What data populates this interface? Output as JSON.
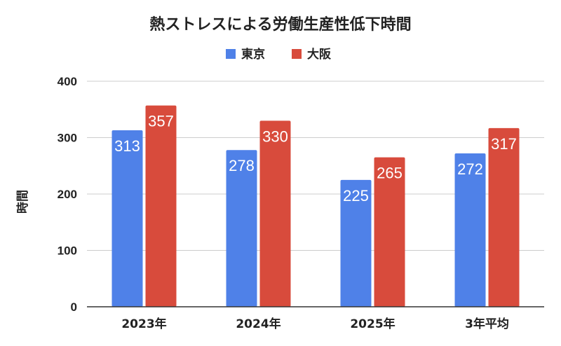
{
  "chart_data": {
    "type": "bar",
    "title": "熱ストレスによる労働生産性低下時間",
    "ylabel": "時間",
    "xlabel": "",
    "categories": [
      "2023年",
      "2024年",
      "2025年",
      "3年平均"
    ],
    "series": [
      {
        "name": "東京",
        "color": "#4f81e8",
        "values": [
          313,
          278,
          225,
          272
        ]
      },
      {
        "name": "大阪",
        "color": "#d84b3c",
        "values": [
          357,
          330,
          265,
          317
        ]
      }
    ],
    "ylim": [
      0,
      400
    ],
    "yticks": [
      "0",
      "100",
      "200",
      "300",
      "400"
    ],
    "yticks_values": [
      0,
      100,
      200,
      300,
      400
    ],
    "grid": true,
    "legend_position": "top-center",
    "data_labels": true
  }
}
